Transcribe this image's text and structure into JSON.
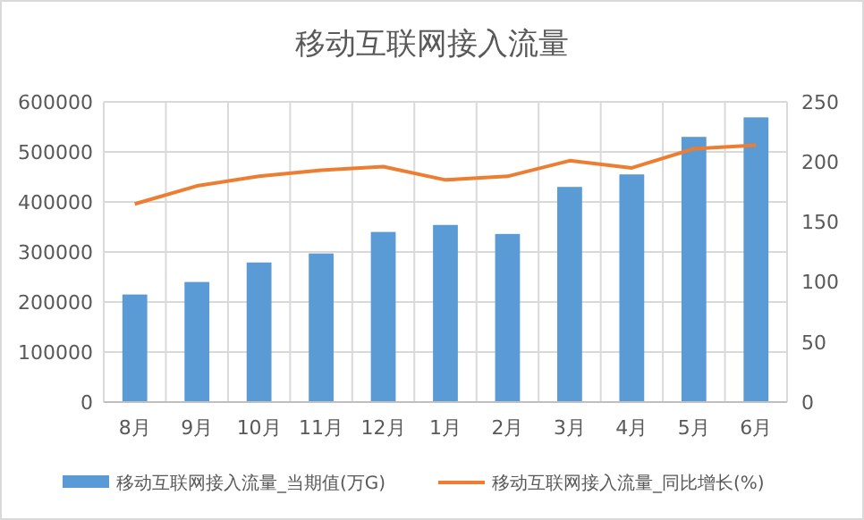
{
  "chart_data": {
    "type": "bar",
    "title": "移动互联网接入流量",
    "categories": [
      "8月",
      "9月",
      "10月",
      "11月",
      "12月",
      "1月",
      "2月",
      "3月",
      "4月",
      "5月",
      "6月"
    ],
    "series": [
      {
        "name": "移动互联网接入流量_当期值(万G)",
        "color": "#5b9bd5",
        "values": [
          215000,
          240000,
          279000,
          297000,
          340000,
          354000,
          336000,
          430000,
          455000,
          530000,
          569000
        ]
      },
      {
        "name": "移动互联网接入流量_同比增长(%)",
        "type": "line",
        "axis": "y2",
        "color": "#ed7d31",
        "values": [
          165,
          180,
          188,
          193,
          196,
          185,
          188,
          201,
          195,
          211,
          214
        ]
      }
    ],
    "ylim": [
      0,
      600000
    ],
    "yticks": [
      0,
      100000,
      200000,
      300000,
      400000,
      500000,
      600000
    ],
    "y2lim": [
      0,
      250
    ],
    "y2ticks": [
      0,
      50,
      100,
      150,
      200,
      250
    ],
    "grid": true,
    "legend": "bottom",
    "marker": "none",
    "line_style": "solid"
  }
}
